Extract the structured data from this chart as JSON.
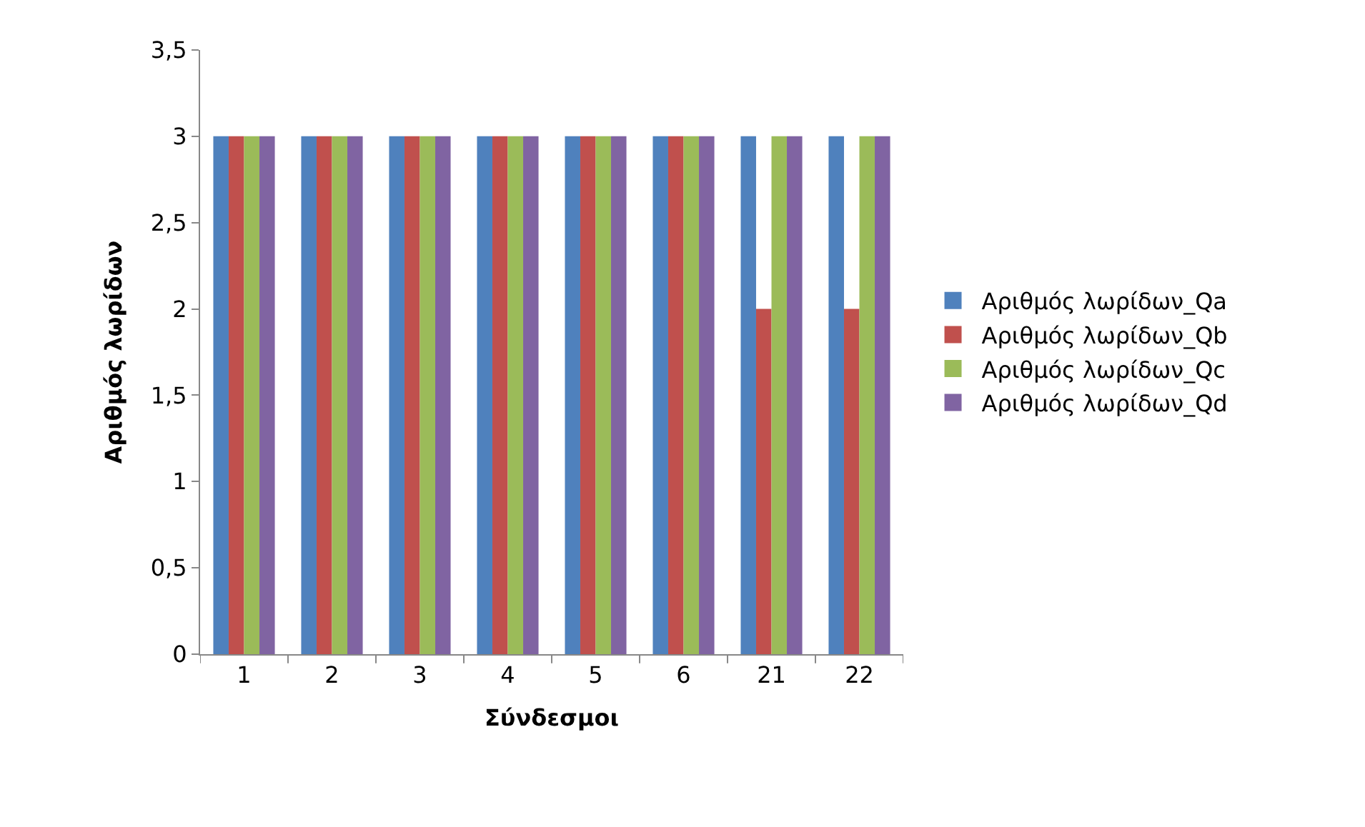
{
  "chart_data": {
    "type": "bar",
    "xlabel": "Σύνδεσμοι",
    "ylabel": "Αριθμός λωρίδων",
    "categories": [
      "1",
      "2",
      "3",
      "4",
      "5",
      "6",
      "21",
      "22"
    ],
    "series": [
      {
        "name": "Αριθμός λωρίδων_Qa",
        "color": "#4f81bd",
        "values": [
          3,
          3,
          3,
          3,
          3,
          3,
          3,
          3
        ]
      },
      {
        "name": "Αριθμός λωρίδων_Qb",
        "color": "#c0504d",
        "values": [
          3,
          3,
          3,
          3,
          3,
          3,
          2,
          2
        ]
      },
      {
        "name": "Αριθμός λωρίδων_Qc",
        "color": "#9bbb59",
        "values": [
          3,
          3,
          3,
          3,
          3,
          3,
          3,
          3
        ]
      },
      {
        "name": "Αριθμός λωρίδων_Qd",
        "color": "#8064a2",
        "values": [
          3,
          3,
          3,
          3,
          3,
          3,
          3,
          3
        ]
      }
    ],
    "ylim": [
      0,
      3.5
    ],
    "yticks": [
      0,
      {
        "value": 0.5,
        "label": "0,5"
      },
      1,
      {
        "value": 1.5,
        "label": "1,5"
      },
      2,
      {
        "value": 2.5,
        "label": "2,5"
      },
      3,
      {
        "value": 3.5,
        "label": "3,5"
      }
    ],
    "grid": false,
    "legend": "right"
  }
}
